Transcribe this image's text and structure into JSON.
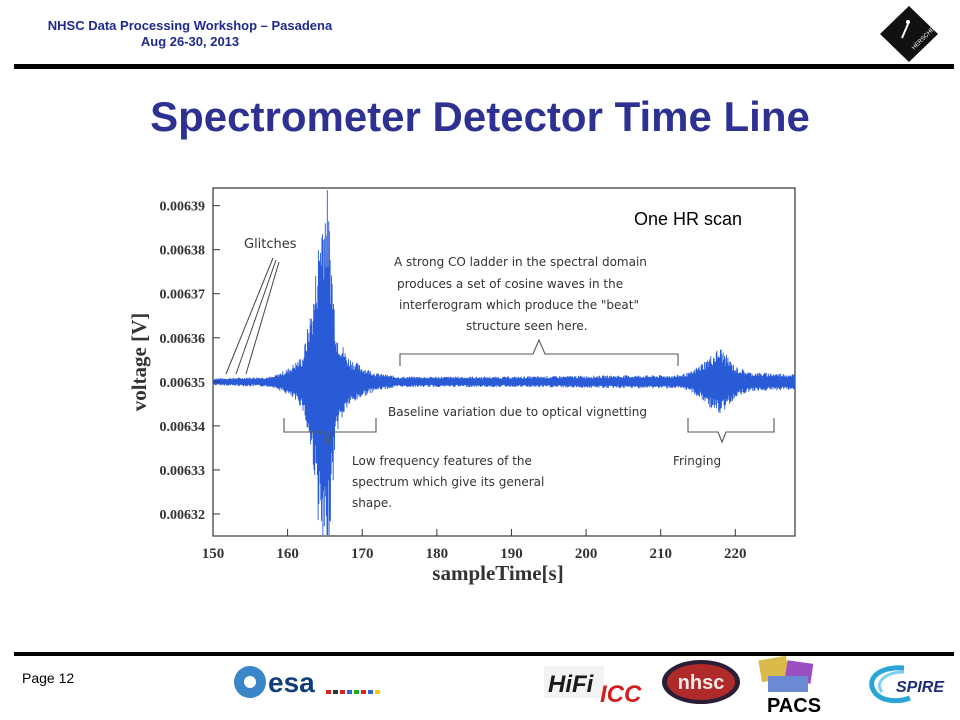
{
  "header": {
    "line1": "NHSC Data Processing Workshop – Pasadena",
    "line2": "Aug 26-30, 2013"
  },
  "title": "Spectrometer Detector Time Line",
  "footer": {
    "page": "Page 12"
  },
  "logos": {
    "esa": "esa",
    "hifi": "HiFi",
    "icc": "ICC",
    "nhsc": "nhsc",
    "pacs": "PACS",
    "spire": "SPIRE",
    "herschel": "HERSCHEL"
  },
  "chart_data": {
    "type": "line",
    "title": "",
    "xlabel": "sampleTime[s]",
    "ylabel": "voltage [V]",
    "xlim": [
      150,
      228
    ],
    "ylim": [
      0.006315,
      0.006394
    ],
    "x_ticks": [
      150,
      160,
      170,
      180,
      190,
      200,
      210,
      220
    ],
    "y_ticks": [
      0.00632,
      0.00633,
      0.00634,
      0.00635,
      0.00636,
      0.00637,
      0.00638,
      0.00639
    ],
    "y_tick_labels": [
      "0.00632",
      "0.00633",
      "0.00634",
      "0.00635",
      "0.00636",
      "0.00637",
      "0.00638",
      "0.00639"
    ],
    "grid": false,
    "series_color": "#2a5bd7",
    "baseline": 0.00635,
    "envelope": [
      {
        "x": 150,
        "amp": 8e-07
      },
      {
        "x": 158,
        "amp": 1.2e-06
      },
      {
        "x": 160,
        "amp": 3e-06
      },
      {
        "x": 162,
        "amp": 6e-06
      },
      {
        "x": 163.5,
        "amp": 2e-05
      },
      {
        "x": 164.5,
        "amp": 4e-05
      },
      {
        "x": 165.3,
        "amp": 4.5e-05
      },
      {
        "x": 166.5,
        "amp": 1.2e-05
      },
      {
        "x": 168,
        "amp": 6e-06
      },
      {
        "x": 170,
        "amp": 3.5e-06
      },
      {
        "x": 172,
        "amp": 2e-06
      },
      {
        "x": 175,
        "amp": 1.2e-06
      },
      {
        "x": 190,
        "amp": 1.2e-06
      },
      {
        "x": 205,
        "amp": 1.5e-06
      },
      {
        "x": 212,
        "amp": 1.5e-06
      },
      {
        "x": 214,
        "amp": 2.2e-06
      },
      {
        "x": 216,
        "amp": 5e-06
      },
      {
        "x": 218,
        "amp": 8e-06
      },
      {
        "x": 220,
        "amp": 3.5e-06
      },
      {
        "x": 222,
        "amp": 2.2e-06
      },
      {
        "x": 228,
        "amp": 1.8e-06
      }
    ],
    "annotations": {
      "scan_label": "One HR scan",
      "glitches": "Glitches",
      "co_ladder": [
        "A strong CO ladder in the spectral domain",
        "produces a set of cosine waves in the",
        "interferogram which produce the \"beat\"",
        "structure seen here."
      ],
      "baseline": "Baseline variation due to optical vignetting",
      "low_freq": [
        "Low frequency features of the",
        "spectrum which give its general",
        "shape."
      ],
      "fringing": "Fringing"
    }
  }
}
